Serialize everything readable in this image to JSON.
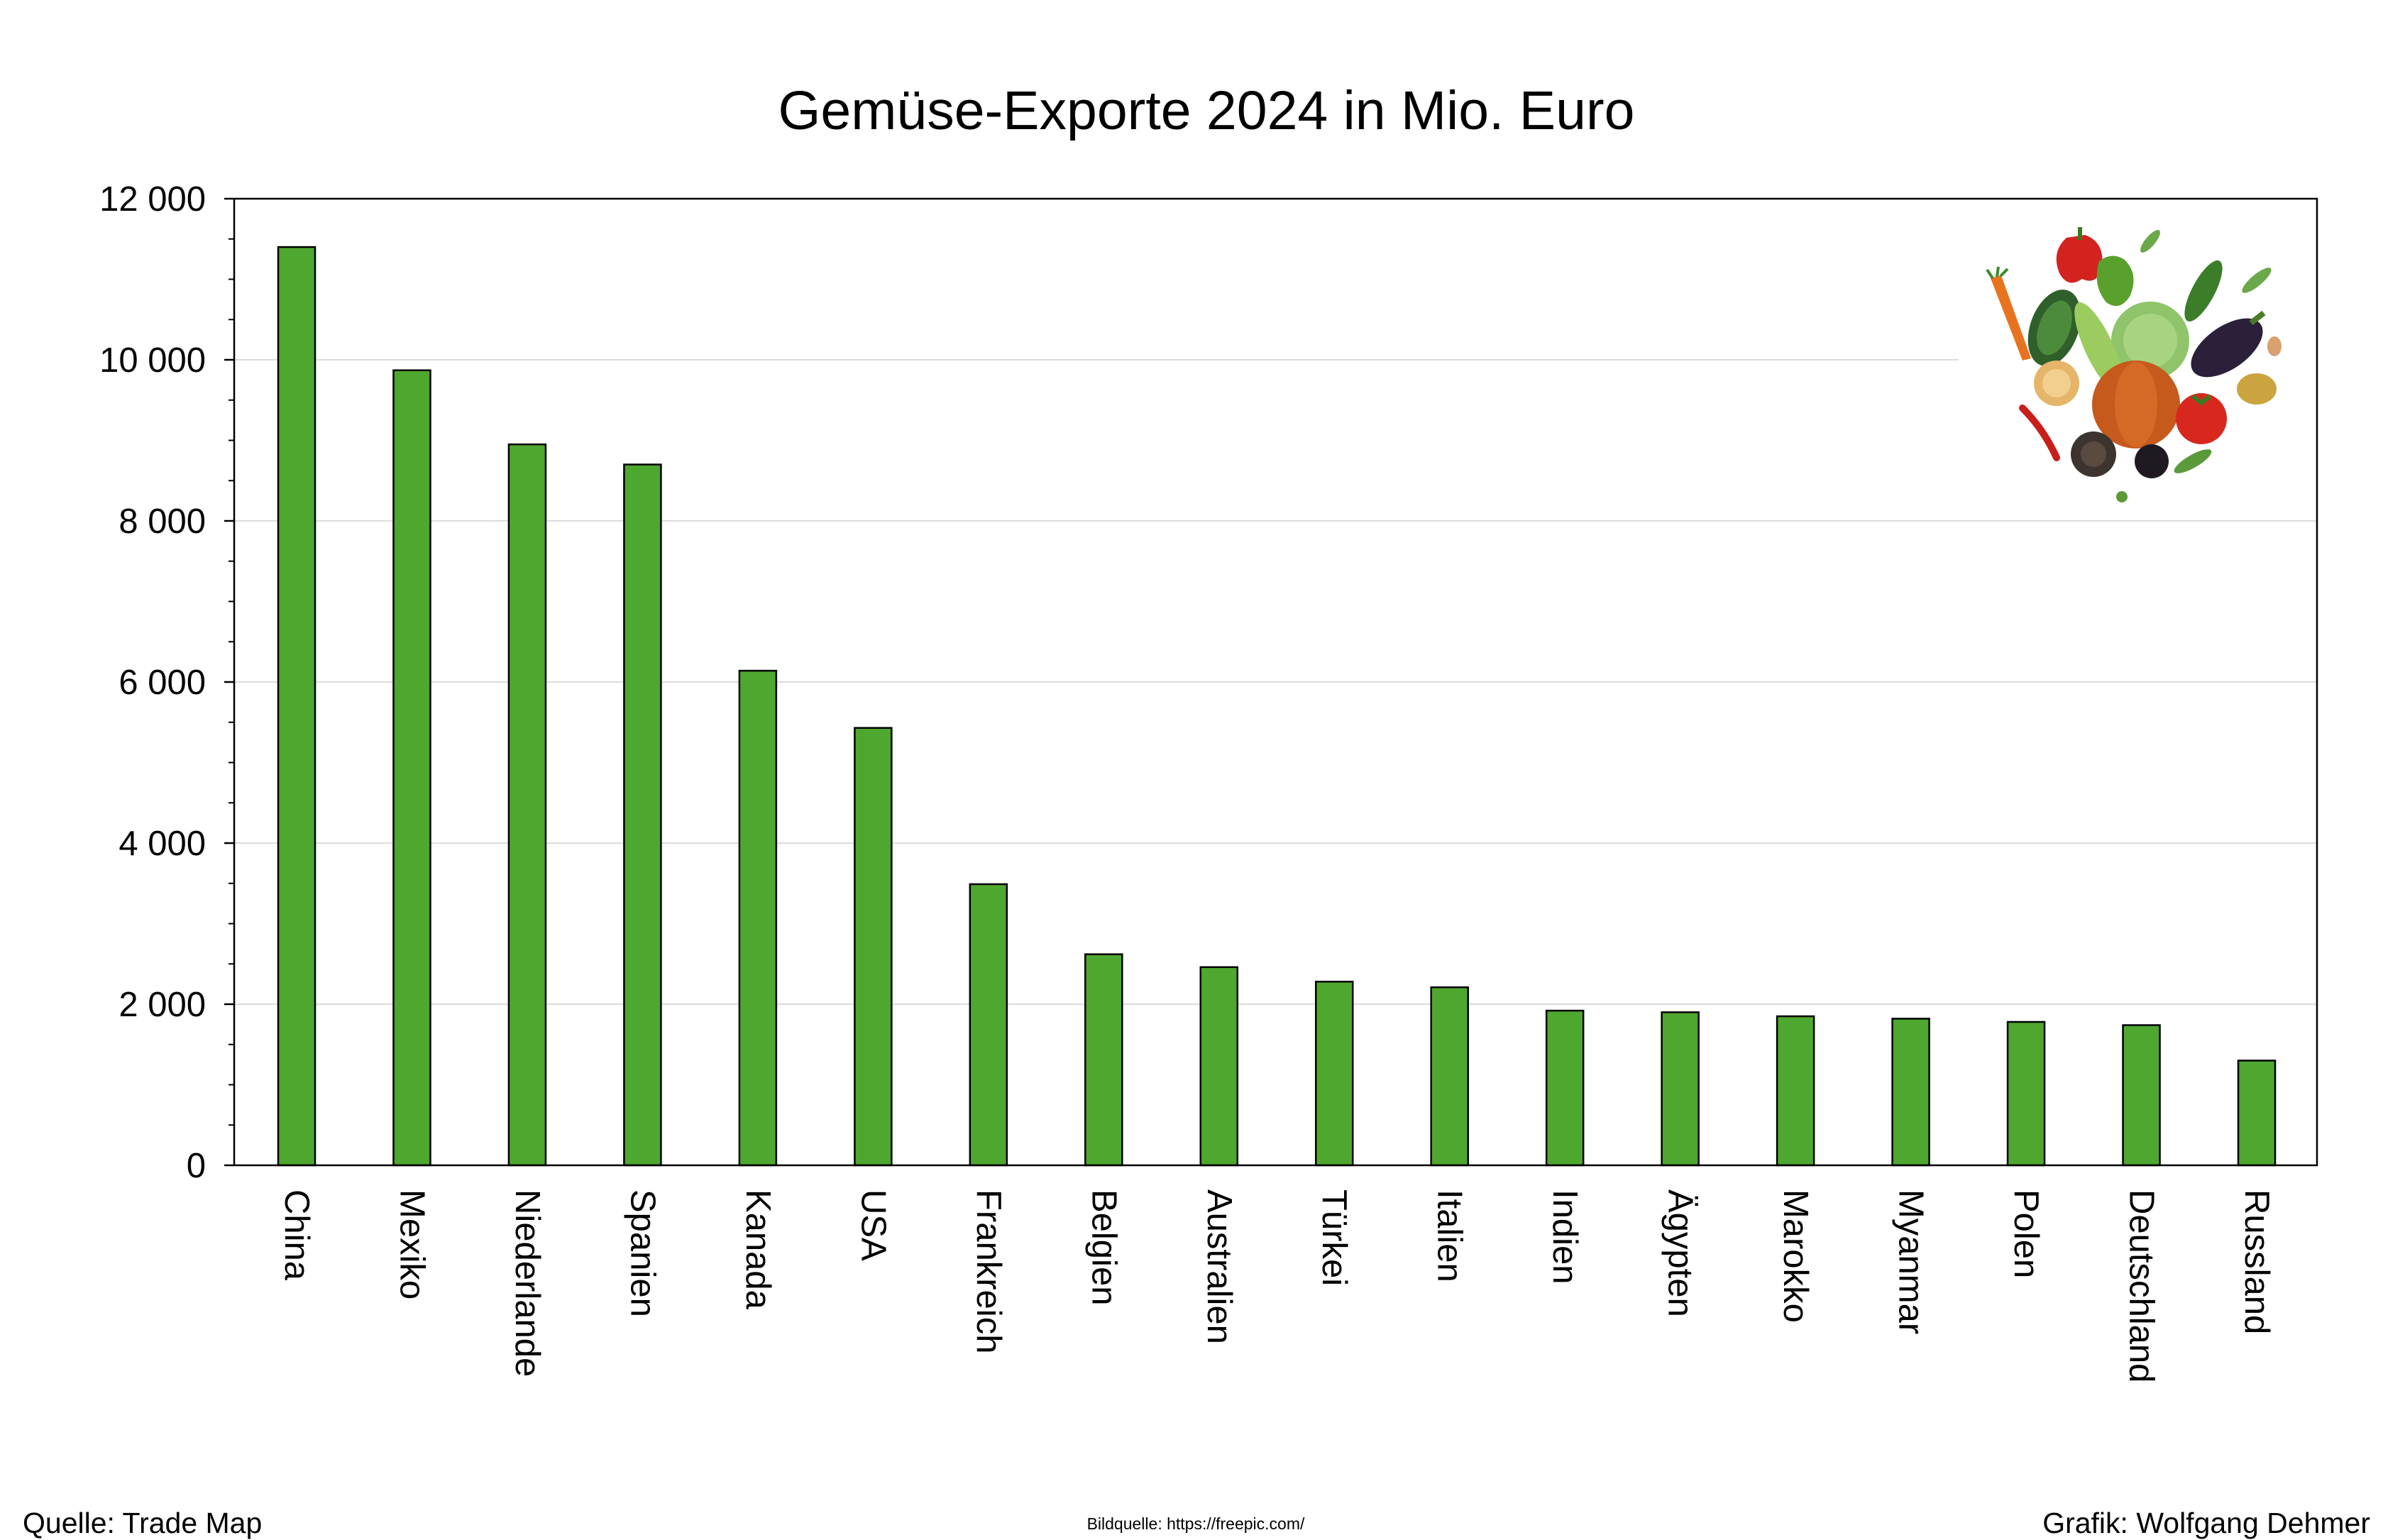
{
  "chart_data": {
    "type": "bar",
    "title": "Gemüse-Exporte 2024 in Mio. Euro",
    "xlabel": "",
    "ylabel": "",
    "ylim": [
      0,
      12000
    ],
    "yticks": [
      0,
      2000,
      4000,
      6000,
      8000,
      10000,
      12000
    ],
    "ytick_labels": [
      "0",
      "2 000",
      "4 000",
      "6 000",
      "8 000",
      "10 000",
      "12 000"
    ],
    "categories": [
      "China",
      "Mexiko",
      "Niederlande",
      "Spanien",
      "Kanada",
      "USA",
      "Frankreich",
      "Belgien",
      "Australien",
      "Türkei",
      "Italien",
      "Indien",
      "Ägypten",
      "Marokko",
      "Myanmar",
      "Polen",
      "Deutschland",
      "Russland"
    ],
    "values": [
      11400,
      9870,
      8950,
      8700,
      6140,
      5430,
      3490,
      2620,
      2460,
      2280,
      2210,
      1920,
      1900,
      1850,
      1820,
      1780,
      1740,
      1300
    ],
    "grid": true,
    "legend": "none",
    "bar_color": "#4ea72e"
  },
  "footer": {
    "source": "Quelle: Trade Map",
    "image_credit": "Bildquelle: https://freepic.com/",
    "author": "Grafik: Wolfgang Dehmer"
  },
  "decoration": {
    "icon": "vegetables-illustration"
  }
}
